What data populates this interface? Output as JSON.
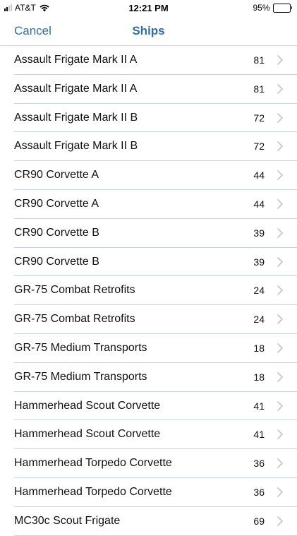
{
  "status_bar": {
    "carrier": "AT&T",
    "time": "12:21 PM",
    "battery": "95%",
    "battery_level": 0.95,
    "icons": [
      "signal-icon",
      "wifi-icon",
      "battery-icon"
    ]
  },
  "nav": {
    "cancel_label": "Cancel",
    "title": "Ships"
  },
  "colors": {
    "accent": "#2f6da3",
    "separator": "#c8d5e6",
    "chevron": "#c4c4c7"
  },
  "ships": [
    {
      "name": "Assault Frigate Mark II A",
      "count": "81"
    },
    {
      "name": "Assault Frigate Mark II A",
      "count": "81"
    },
    {
      "name": "Assault Frigate Mark II B",
      "count": "72"
    },
    {
      "name": "Assault Frigate Mark II B",
      "count": "72"
    },
    {
      "name": "CR90 Corvette A",
      "count": "44"
    },
    {
      "name": "CR90 Corvette A",
      "count": "44"
    },
    {
      "name": "CR90 Corvette B",
      "count": "39"
    },
    {
      "name": "CR90 Corvette B",
      "count": "39"
    },
    {
      "name": "GR-75 Combat Retrofits",
      "count": "24"
    },
    {
      "name": "GR-75 Combat Retrofits",
      "count": "24"
    },
    {
      "name": "GR-75 Medium Transports",
      "count": "18"
    },
    {
      "name": "GR-75 Medium Transports",
      "count": "18"
    },
    {
      "name": "Hammerhead Scout Corvette",
      "count": "41"
    },
    {
      "name": "Hammerhead Scout Corvette",
      "count": "41"
    },
    {
      "name": "Hammerhead Torpedo Corvette",
      "count": "36"
    },
    {
      "name": "Hammerhead Torpedo Corvette",
      "count": "36"
    },
    {
      "name": "MC30c Scout Frigate",
      "count": "69"
    }
  ]
}
